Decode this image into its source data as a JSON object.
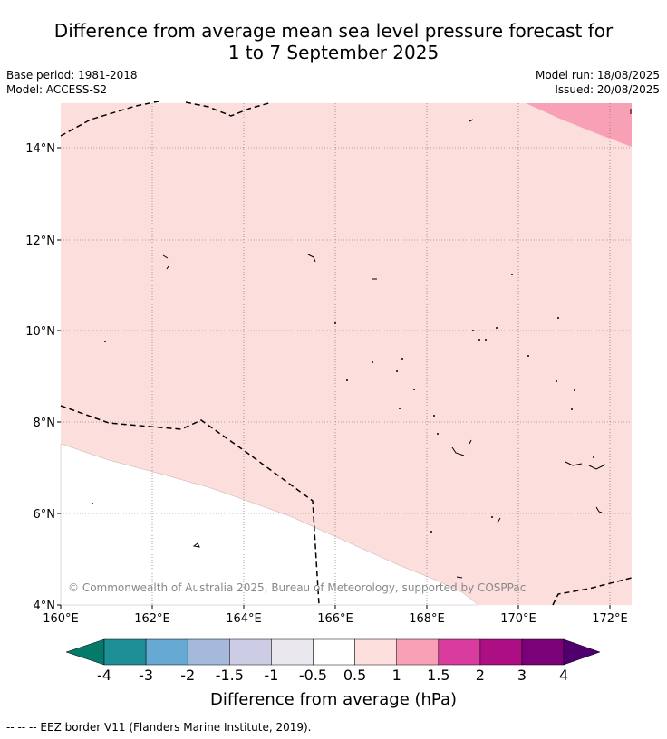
{
  "title": {
    "line1": "Difference from average mean sea level pressure forecast for",
    "line2": "1 to 7 September 2025"
  },
  "meta": {
    "base_period": "Base period: 1981-2018",
    "model": "Model: ACCESS-S2",
    "model_run": "Model run: 18/08/2025",
    "issued": "Issued: 20/08/2025"
  },
  "map": {
    "lon_range": [
      160,
      172.5
    ],
    "lat_range": [
      4,
      15
    ],
    "lon_ticks": [
      160,
      162,
      164,
      166,
      168,
      170,
      172
    ],
    "lat_ticks": [
      4,
      6,
      8,
      10,
      12,
      14
    ],
    "lon_tick_labels": [
      "160°E",
      "162°E",
      "164°E",
      "166°E",
      "168°E",
      "170°E",
      "172°E"
    ],
    "lat_tick_labels": [
      "4°N",
      "6°N",
      "8°N",
      "10°N",
      "12°N",
      "14°N"
    ],
    "copyright": "© Commonwealth of Australia 2025, Bureau of Meteorology, supported by COSPPac",
    "background_color": "#fcdedd",
    "neutral_color": "#ffffff",
    "higher_color": "#f8a1b6"
  },
  "colorbar": {
    "ticks": [
      "-4",
      "-3",
      "-2",
      "-1.5",
      "-1",
      "-0.5",
      "0.5",
      "1",
      "1.5",
      "2",
      "3",
      "4"
    ],
    "colors": [
      "#1d9097",
      "#66aad4",
      "#a4b9dc",
      "#cccde5",
      "#ebe7ef",
      "#ffffff",
      "#fcdedd",
      "#f8a1b6",
      "#d93b9e",
      "#ad0e84",
      "#7a0178"
    ],
    "low_extend_color": "#047b6a",
    "high_extend_color": "#4f006e",
    "label": "Difference from average (hPa)"
  },
  "footnote": "--  --  -- EEZ border V11 (Flanders Marine Institute, 2019)."
}
